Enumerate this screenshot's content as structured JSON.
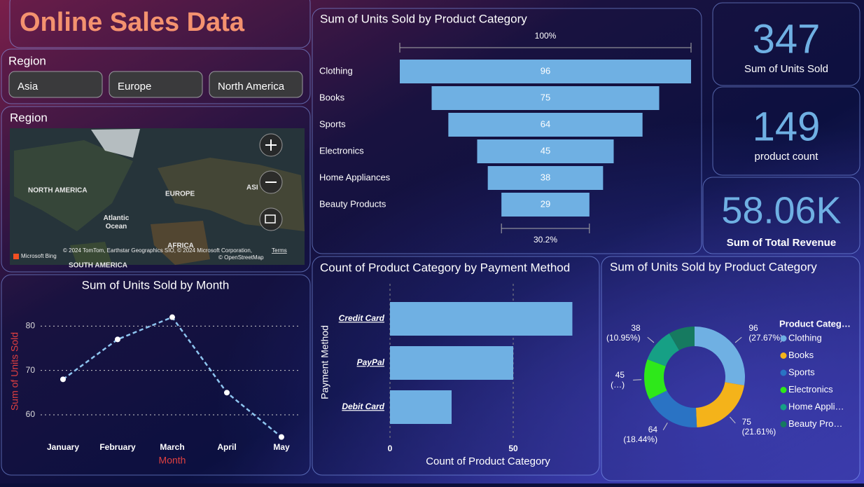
{
  "header": {
    "title": "Online Sales Data"
  },
  "region_slicer": {
    "title": "Region",
    "options": [
      "Asia",
      "Europe",
      "North America"
    ]
  },
  "map": {
    "title": "Region",
    "labels": [
      "NORTH AMERICA",
      "EUROPE",
      "ASI",
      "Atlantic Ocean",
      "AFRICA",
      "SOUTH AMERICA"
    ],
    "brand": "Microsoft Bing",
    "attribution": "© 2024 TomTom, Earthstar Geographics SIO, © 2024 Microsoft Corporation,",
    "terms": "Terms",
    "osm": "© OpenStreetMap"
  },
  "cards": [
    {
      "value": 347,
      "label": "Sum of Units Sold"
    },
    {
      "value": 149,
      "label": "product count"
    },
    {
      "value": "58.06K",
      "label": "Sum of Total Revenue"
    }
  ],
  "chart_data": [
    {
      "type": "funnel",
      "title": "Sum of Units Sold by Product Category",
      "categories": [
        "Clothing",
        "Books",
        "Sports",
        "Electronics",
        "Home Appliances",
        "Beauty Products"
      ],
      "values": [
        96,
        75,
        64,
        45,
        38,
        29
      ],
      "color": "#6fb0e3",
      "top_label": "100%",
      "bottom_label": "30.2%"
    },
    {
      "type": "line",
      "title": "Sum of Units Sold by Month",
      "x_label": "Month",
      "y_label": "Sum of Units Sold",
      "categories": [
        "January",
        "February",
        "March",
        "April",
        "May"
      ],
      "values": [
        68,
        77,
        82,
        65,
        55
      ],
      "color": "#8ec5f0",
      "ylim": [
        54,
        84
      ],
      "yticks": [
        60,
        70,
        80
      ],
      "grid": true
    },
    {
      "type": "hbar",
      "title": "Count of Product Category by Payment Method",
      "x_label": "Count of Product Category",
      "y_label": "Payment Method",
      "categories": [
        "Credit Card",
        "PayPal",
        "Debit Card"
      ],
      "values": [
        74,
        50,
        25
      ],
      "color": "#6fb0e3",
      "xlim": [
        0,
        80
      ],
      "xticks": [
        0,
        50
      ],
      "grid": true
    },
    {
      "type": "donut",
      "title": "Sum of Units Sold by Product Category",
      "legend_title": "Product Categ…",
      "categories": [
        "Clothing",
        "Books",
        "Sports",
        "Electronics",
        "Home Appli…",
        "Beauty Pro…"
      ],
      "values": [
        96,
        75,
        64,
        45,
        38,
        29
      ],
      "percent_labels": [
        "(27.67%)",
        "(21.61%)",
        "(18.44%)",
        "(…)",
        "(10.95%)",
        null
      ],
      "colors": [
        "#6fb0e3",
        "#f4b31a",
        "#2a73c4",
        "#2ee81a",
        "#16a085",
        "#167a60"
      ],
      "legend": "right"
    }
  ]
}
